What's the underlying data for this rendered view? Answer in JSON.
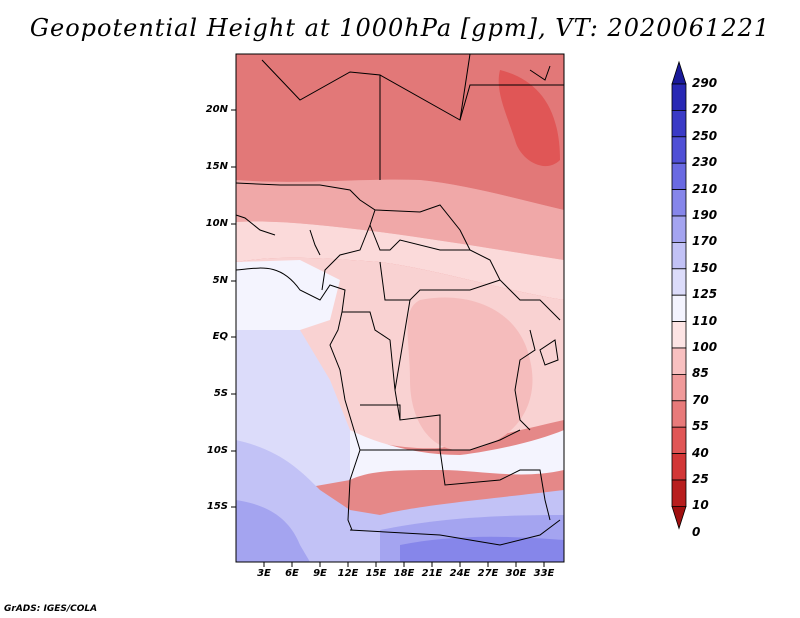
{
  "title": "Geopotential Height at 1000hPa [gpm], VT: 2020061221",
  "credit": "GrADS: IGES/COLA",
  "map": {
    "lat_ticks": [
      "20N",
      "15N",
      "10N",
      "5N",
      "EQ",
      "5S",
      "10S",
      "15S"
    ],
    "lon_ticks": [
      "3E",
      "6E",
      "9E",
      "12E",
      "15E",
      "18E",
      "21E",
      "24E",
      "27E",
      "30E",
      "33E"
    ]
  },
  "colorbar": {
    "levels": [
      "290",
      "270",
      "250",
      "230",
      "210",
      "190",
      "170",
      "150",
      "125",
      "110",
      "100",
      "85",
      "70",
      "55",
      "40",
      "25",
      "10",
      "0"
    ],
    "colors": [
      "#1a1a9a",
      "#2828b4",
      "#3a3ac6",
      "#5050d6",
      "#6a6ae2",
      "#8686ea",
      "#a4a4f0",
      "#c2c2f6",
      "#dcdcfa",
      "#f4f4fe",
      "#fde4e4",
      "#f8c0c0",
      "#f09a9a",
      "#e87a7a",
      "#e05656",
      "#d23636",
      "#b81e1e",
      "#a00f0f"
    ]
  }
}
